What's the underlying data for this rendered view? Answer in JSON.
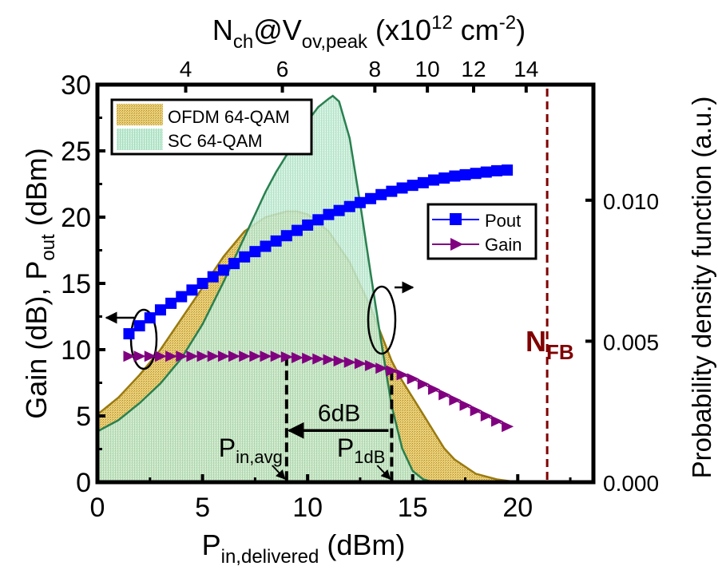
{
  "chart_data": {
    "type": "line",
    "title": "",
    "xlabel": {
      "main": "P",
      "sub": "in,delivered",
      "unit": " (dBm)"
    },
    "ylabel_left": {
      "pre": "Gain (dB), P",
      "sub": "out",
      "post": " (dBm)"
    },
    "ylabel_right": "Probability density function (a.u.)",
    "xlabel_top": {
      "main": "N",
      "sub1": "ch",
      "mid": "@V",
      "sub2": "ov,peak",
      "post": " (x10",
      "sup1": "12",
      "post2": " cm",
      "sup2": "-2",
      "end": ")"
    },
    "xlim": [
      0,
      23.6
    ],
    "ylim_left": [
      0,
      30
    ],
    "ylim_right": [
      0,
      0.0141
    ],
    "x_ticks": [
      0,
      5,
      10,
      15,
      20
    ],
    "y_left_ticks": [
      0,
      5,
      10,
      15,
      20,
      25,
      30
    ],
    "y_right_ticks": [
      {
        "value": 0.0,
        "label": "0.000"
      },
      {
        "value": 0.005,
        "label": "0.005"
      },
      {
        "value": 0.01,
        "label": "0.010"
      }
    ],
    "top_ticks": [
      {
        "x": 4.2,
        "label": "4"
      },
      {
        "x": 8.8,
        "label": "6"
      },
      {
        "x": 13.2,
        "label": "8"
      },
      {
        "x": 15.7,
        "label": "10"
      },
      {
        "x": 17.9,
        "label": "12"
      },
      {
        "x": 20.4,
        "label": "14"
      }
    ],
    "series": [
      {
        "name": "Pout",
        "axis": "left",
        "color": "#0000ff",
        "marker": "square",
        "x": [
          1.5,
          2.0,
          2.5,
          3.0,
          3.5,
          4.0,
          4.5,
          5.0,
          5.5,
          6.0,
          6.5,
          7.0,
          7.5,
          8.0,
          8.5,
          9.0,
          9.5,
          10.0,
          10.5,
          11.0,
          11.5,
          12.0,
          12.5,
          13.0,
          13.5,
          14.0,
          14.5,
          15.0,
          15.5,
          16.0,
          16.5,
          17.0,
          17.5,
          18.0,
          18.5,
          19.0,
          19.5
        ],
        "y": [
          11.2,
          11.8,
          12.4,
          13.0,
          13.5,
          14.0,
          14.5,
          15.0,
          15.5,
          16.0,
          16.5,
          17.0,
          17.4,
          17.8,
          18.2,
          18.6,
          19.0,
          19.4,
          19.8,
          20.2,
          20.5,
          20.8,
          21.1,
          21.4,
          21.7,
          21.95,
          22.2,
          22.4,
          22.6,
          22.8,
          22.95,
          23.1,
          23.2,
          23.3,
          23.4,
          23.5,
          23.55
        ]
      },
      {
        "name": "Gain",
        "axis": "left",
        "color": "#800080",
        "marker": "triangle-right",
        "x": [
          1.5,
          2.0,
          2.5,
          3.0,
          3.5,
          4.0,
          4.5,
          5.0,
          5.5,
          6.0,
          6.5,
          7.0,
          7.5,
          8.0,
          8.5,
          9.0,
          9.5,
          10.0,
          10.5,
          11.0,
          11.5,
          12.0,
          12.5,
          13.0,
          13.5,
          14.0,
          14.5,
          15.0,
          15.5,
          16.0,
          16.5,
          17.0,
          17.5,
          18.0,
          18.5,
          19.0,
          19.5
        ],
        "y": [
          9.5,
          9.5,
          9.5,
          9.5,
          9.5,
          9.5,
          9.5,
          9.5,
          9.5,
          9.5,
          9.5,
          9.5,
          9.5,
          9.5,
          9.5,
          9.45,
          9.4,
          9.35,
          9.3,
          9.25,
          9.15,
          9.05,
          8.95,
          8.8,
          8.6,
          8.4,
          8.1,
          7.8,
          7.4,
          7.0,
          6.6,
          6.2,
          5.8,
          5.4,
          5.0,
          4.6,
          4.2
        ]
      }
    ],
    "pdf_series": [
      {
        "name": "OFDM 64-QAM",
        "axis": "right",
        "fill": "#d9b64f",
        "stroke": "#9a7a10",
        "x": [
          0,
          1,
          2,
          3,
          4,
          5,
          6,
          7,
          8,
          9,
          9.5,
          10,
          11,
          12,
          13,
          14,
          14.5,
          15,
          15.5,
          16,
          16.5,
          17,
          18,
          19,
          20
        ],
        "y": [
          0.0024,
          0.003,
          0.0038,
          0.0047,
          0.0058,
          0.0069,
          0.008,
          0.0089,
          0.0094,
          0.0096,
          0.0096,
          0.0095,
          0.0089,
          0.0078,
          0.0062,
          0.0043,
          0.0036,
          0.003,
          0.0024,
          0.0018,
          0.0012,
          0.0008,
          0.0003,
          0.0001,
          0.0
        ]
      },
      {
        "name": "SC 64-QAM",
        "axis": "right",
        "fill": "#b8e6cc",
        "stroke": "#2a8050",
        "x": [
          0,
          1,
          2,
          3,
          4,
          5,
          6,
          7,
          7.5,
          8,
          8.5,
          9,
          9.5,
          10,
          10.5,
          11,
          11.2,
          11.5,
          12,
          12.5,
          13,
          13.5,
          14,
          14.5,
          15,
          15.5,
          16
        ],
        "y": [
          0.0018,
          0.0022,
          0.0028,
          0.0035,
          0.0044,
          0.0056,
          0.0071,
          0.0087,
          0.0095,
          0.0103,
          0.011,
          0.0116,
          0.0122,
          0.0128,
          0.0133,
          0.0136,
          0.0137,
          0.0135,
          0.0122,
          0.0099,
          0.0074,
          0.005,
          0.0027,
          0.0012,
          0.0004,
          0.0001,
          0.0
        ]
      }
    ],
    "legend_pdf": {
      "position": "top-left",
      "entries": [
        "OFDM 64-QAM",
        "SC 64-QAM"
      ]
    },
    "legend_lines": {
      "position": "center-right",
      "entries": [
        "Pout",
        "Gain"
      ]
    },
    "annotations": {
      "pin_avg": {
        "x": 9.0,
        "main": "P",
        "sub": "in,avg"
      },
      "p1db": {
        "x": 14.0,
        "main": "P",
        "sub": "1dB"
      },
      "backoff": {
        "text": "6dB",
        "y": 3.9
      },
      "nfb": {
        "x": 21.4,
        "main": "N",
        "sub": "FB",
        "color": "#800000"
      }
    }
  }
}
